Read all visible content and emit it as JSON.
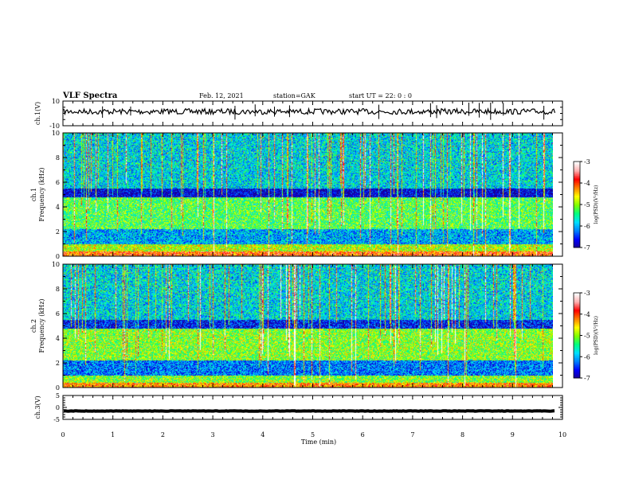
{
  "header": {
    "title": "VLF Spectra",
    "date": "Feb. 12, 2021",
    "station": "station=GAK",
    "start": "start  UT =   22: 0  : 0"
  },
  "colorbar": {
    "label": "log(PSD)(V²/Hz)",
    "ticks": [
      "-3",
      "-4",
      "-5",
      "-6",
      "-7"
    ],
    "range": [
      -7,
      -3
    ],
    "colors": [
      "#1a0090",
      "#0000ff",
      "#0080ff",
      "#00e0ff",
      "#00ff80",
      "#80ff00",
      "#ffff00",
      "#ff8000",
      "#ff0000",
      "#ffb0b0",
      "#ffffff"
    ]
  },
  "chart_data": [
    {
      "type": "line",
      "name": "ch1-waveform",
      "ylabel": "ch.1(V)",
      "ylim": [
        -10,
        10
      ],
      "yticks": [
        "10",
        "-10"
      ],
      "xlim": [
        0,
        10
      ],
      "baseline_value": 1.5,
      "color": "#000000"
    },
    {
      "type": "heatmap",
      "name": "ch1-spectrogram",
      "ylabel": "ch.1\nFrequency (kHz)",
      "ylim": [
        0,
        10
      ],
      "yticks": [
        "10",
        "8",
        "6",
        "4",
        "2",
        "0"
      ],
      "xlim": [
        0,
        9.85
      ],
      "value_label": "log(PSD)(V²/Hz)",
      "bands_khz": [
        {
          "f0": 0,
          "f1": 0.4,
          "level": 0.75
        },
        {
          "f0": 0.4,
          "f1": 1.0,
          "level": 0.55
        },
        {
          "f0": 1.0,
          "f1": 2.2,
          "level": 0.25
        },
        {
          "f0": 2.2,
          "f1": 4.8,
          "level": 0.45
        },
        {
          "f0": 4.8,
          "f1": 5.5,
          "level": 0.05
        },
        {
          "f0": 5.5,
          "f1": 10,
          "level": 0.3
        }
      ]
    },
    {
      "type": "heatmap",
      "name": "ch2-spectrogram",
      "ylabel": "ch.2\nFrequency (kHz)",
      "ylim": [
        0,
        10
      ],
      "yticks": [
        "10",
        "8",
        "6",
        "4",
        "2",
        "0"
      ],
      "xlim": [
        0,
        9.85
      ],
      "value_label": "log(PSD)(V²/Hz)",
      "bands_khz": [
        {
          "f0": 0,
          "f1": 0.4,
          "level": 0.7
        },
        {
          "f0": 0.4,
          "f1": 1.0,
          "level": 0.5
        },
        {
          "f0": 1.0,
          "f1": 2.2,
          "level": 0.2
        },
        {
          "f0": 2.2,
          "f1": 4.8,
          "level": 0.5
        },
        {
          "f0": 4.8,
          "f1": 5.5,
          "level": 0.1
        },
        {
          "f0": 5.5,
          "f1": 10,
          "level": 0.3
        }
      ]
    },
    {
      "type": "line",
      "name": "ch3-waveform",
      "ylabel": "ch.3(V)",
      "ylim": [
        -5,
        5
      ],
      "yticks": [
        "5",
        "0",
        "-5"
      ],
      "xlim": [
        0,
        10
      ],
      "baseline_value": -1.5,
      "color": "#000000"
    }
  ],
  "xaxis": {
    "label": "Time  (min)",
    "ticks": [
      "0",
      "1",
      "2",
      "3",
      "4",
      "5",
      "6",
      "7",
      "8",
      "9",
      "10"
    ],
    "range": [
      0,
      10
    ]
  }
}
